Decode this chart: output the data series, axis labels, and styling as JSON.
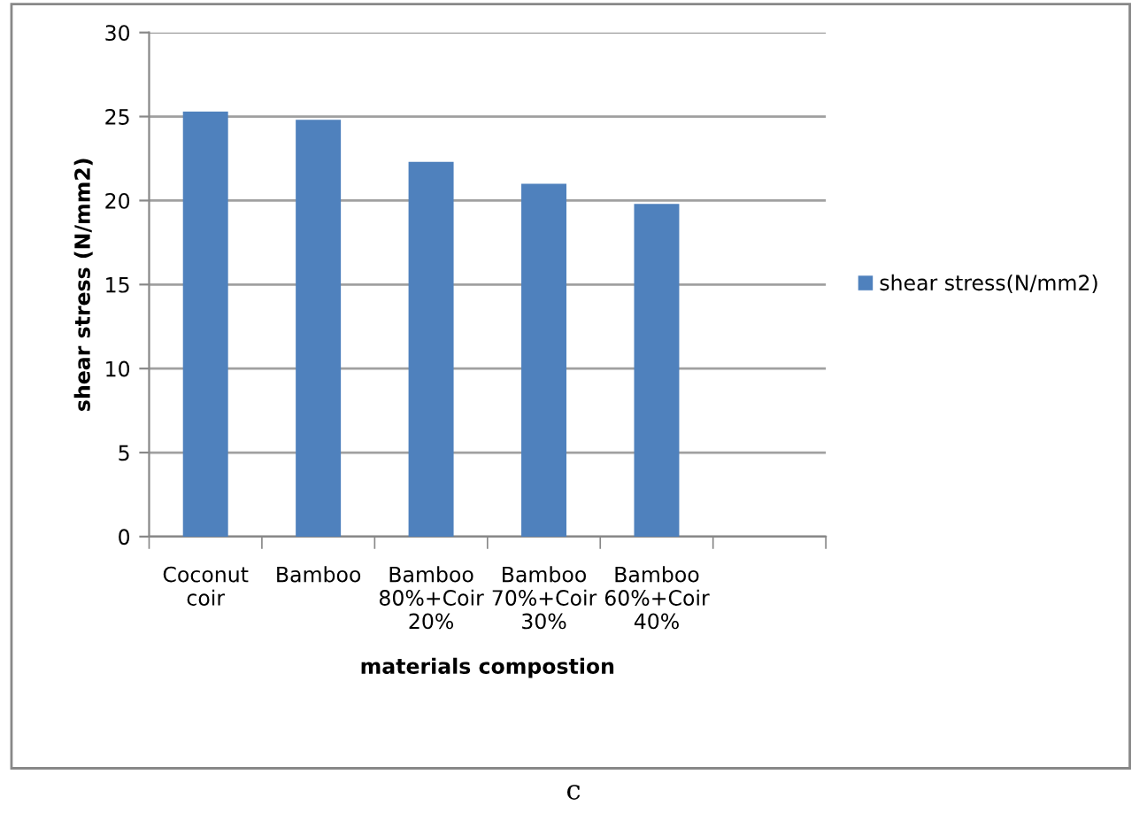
{
  "chart_data": {
    "type": "bar",
    "xlabel": "materials compostion",
    "ylabel": "shear stress (N/mm2)",
    "categories": [
      "Coconut\ncoir",
      "Bamboo",
      "Bamboo\n80%+Coir\n20%",
      "Bamboo\n70%+Coir\n30%",
      "Bamboo\n60%+Coir\n40%",
      null
    ],
    "series": [
      {
        "name": "shear stress(N/mm2)",
        "color": "#4f81bd",
        "values": [
          25.3,
          24.8,
          22.3,
          21.0,
          19.8,
          null
        ]
      }
    ],
    "ylim": [
      0,
      30
    ],
    "yticks": [
      0,
      5,
      10,
      15,
      20,
      25,
      30
    ],
    "grid": "y",
    "legend": "right",
    "annotations": [
      "c"
    ]
  }
}
